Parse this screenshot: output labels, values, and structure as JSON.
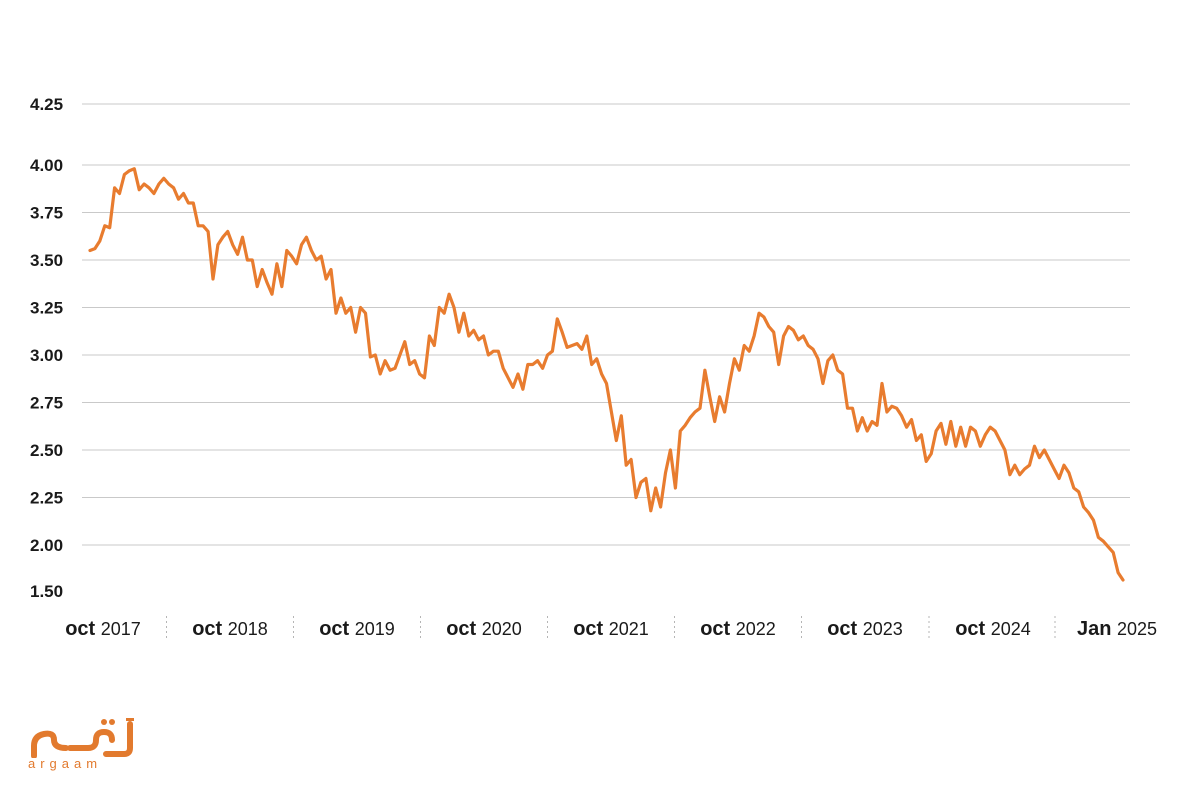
{
  "brand": {
    "logo_text": "أرقام",
    "logo_latin": "argaam",
    "accent_color": "#e87c2f"
  },
  "chart_data": {
    "type": "line",
    "title": "",
    "xlabel": "",
    "ylabel": "",
    "ylim": [
      1.5,
      4.25
    ],
    "yticks": [
      "4.25",
      "4.00",
      "3.75",
      "3.50",
      "3.25",
      "3.00",
      "2.75",
      "2.50",
      "2.25",
      "2.00",
      "1.50"
    ],
    "ytick_values": [
      4.25,
      4.0,
      3.75,
      3.5,
      3.25,
      3.0,
      2.75,
      2.5,
      2.25,
      2.0,
      1.5
    ],
    "xticks": [
      {
        "main": "oct",
        "year": "2017"
      },
      {
        "main": "oct",
        "year": "2018"
      },
      {
        "main": "oct",
        "year": "2019"
      },
      {
        "main": "oct",
        "year": "2020"
      },
      {
        "main": "oct",
        "year": "2021"
      },
      {
        "main": "oct",
        "year": "2022"
      },
      {
        "main": "oct",
        "year": "2023"
      },
      {
        "main": "oct",
        "year": "2024"
      },
      {
        "main": "Jan",
        "year": "2025"
      }
    ],
    "grid": true,
    "legend": "none",
    "series": [
      {
        "color": "#e87c2f",
        "values": [
          3.55,
          3.56,
          3.6,
          3.68,
          3.67,
          3.88,
          3.85,
          3.95,
          3.97,
          3.98,
          3.87,
          3.9,
          3.88,
          3.85,
          3.9,
          3.93,
          3.9,
          3.88,
          3.82,
          3.85,
          3.8,
          3.8,
          3.68,
          3.68,
          3.65,
          3.4,
          3.58,
          3.62,
          3.65,
          3.58,
          3.53,
          3.62,
          3.5,
          3.5,
          3.36,
          3.45,
          3.38,
          3.32,
          3.48,
          3.36,
          3.55,
          3.52,
          3.48,
          3.58,
          3.62,
          3.55,
          3.5,
          3.52,
          3.4,
          3.45,
          3.22,
          3.3,
          3.22,
          3.25,
          3.12,
          3.25,
          3.22,
          2.99,
          3.0,
          2.9,
          2.97,
          2.92,
          2.93,
          3.0,
          3.07,
          2.95,
          2.97,
          2.9,
          2.88,
          3.1,
          3.05,
          3.25,
          3.22,
          3.32,
          3.25,
          3.12,
          3.22,
          3.1,
          3.13,
          3.08,
          3.1,
          3.0,
          3.02,
          3.02,
          2.93,
          2.88,
          2.83,
          2.9,
          2.82,
          2.95,
          2.95,
          2.97,
          2.93,
          3.0,
          3.02,
          3.19,
          3.12,
          3.04,
          3.05,
          3.06,
          3.03,
          3.1,
          2.95,
          2.98,
          2.9,
          2.85,
          2.7,
          2.55,
          2.68,
          2.42,
          2.45,
          2.25,
          2.33,
          2.35,
          2.18,
          2.3,
          2.2,
          2.38,
          2.5,
          2.3,
          2.6,
          2.63,
          2.67,
          2.7,
          2.72,
          2.92,
          2.78,
          2.65,
          2.78,
          2.7,
          2.85,
          2.98,
          2.92,
          3.05,
          3.02,
          3.1,
          3.22,
          3.2,
          3.15,
          3.12,
          2.95,
          3.1,
          3.15,
          3.13,
          3.08,
          3.1,
          3.05,
          3.03,
          2.98,
          2.85,
          2.97,
          3.0,
          2.92,
          2.9,
          2.72,
          2.72,
          2.6,
          2.67,
          2.6,
          2.65,
          2.63,
          2.85,
          2.7,
          2.73,
          2.72,
          2.68,
          2.62,
          2.66,
          2.55,
          2.58,
          2.44,
          2.48,
          2.6,
          2.64,
          2.53,
          2.65,
          2.52,
          2.62,
          2.52,
          2.62,
          2.6,
          2.52,
          2.58,
          2.62,
          2.6,
          2.55,
          2.5,
          2.37,
          2.42,
          2.37,
          2.4,
          2.42,
          2.52,
          2.46,
          2.5,
          2.45,
          2.4,
          2.35,
          2.42,
          2.38,
          2.3,
          2.28,
          2.2,
          2.17,
          2.13,
          2.04,
          2.02,
          1.98,
          1.92,
          1.7,
          1.62
        ]
      }
    ]
  }
}
